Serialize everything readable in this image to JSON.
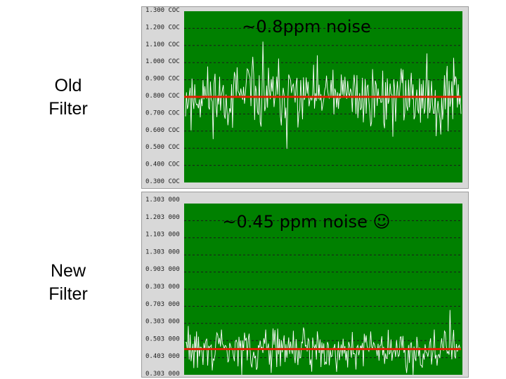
{
  "labels": {
    "old": [
      "Old",
      "Filter"
    ],
    "new": [
      "New",
      "Filter"
    ]
  },
  "colors": {
    "plot_bg": "#008000",
    "trace": "#ffffff",
    "mean_line": "#e02000",
    "grid": "#1a1a1a",
    "frame": "#d8d8d8"
  },
  "chart_data": [
    {
      "type": "line",
      "name": "old-filter",
      "annotation": "~0.8ppm noise",
      "y_ticks": [
        "1.300 COC",
        "1.200 COC",
        "1.100 COC",
        "1.000 COC",
        "0.900 COC",
        "0.800 COC",
        "0.700 COC",
        "0.600 COC",
        "0.500 COC",
        "0.400 COC",
        "0.300 COC"
      ],
      "ylim": [
        0.3,
        1.3
      ],
      "grid": true,
      "mean": 0.8,
      "noise_amplitude": 0.18,
      "samples": 300,
      "seed": 11
    },
    {
      "type": "line",
      "name": "new-filter",
      "annotation": "~0.45 ppm noise ☺",
      "y_ticks": [
        "1.303 000",
        "1.203 000",
        "1.103 000",
        "1.303 000",
        "0.903 000",
        "0.303 000",
        "0.703 000",
        "0.303 000",
        "0.503 000",
        "0.403 000",
        "0.303 000"
      ],
      "ylim": [
        0.3,
        1.3
      ],
      "grid": true,
      "mean": 0.45,
      "noise_amplitude": 0.11,
      "samples": 300,
      "seed": 29
    }
  ]
}
